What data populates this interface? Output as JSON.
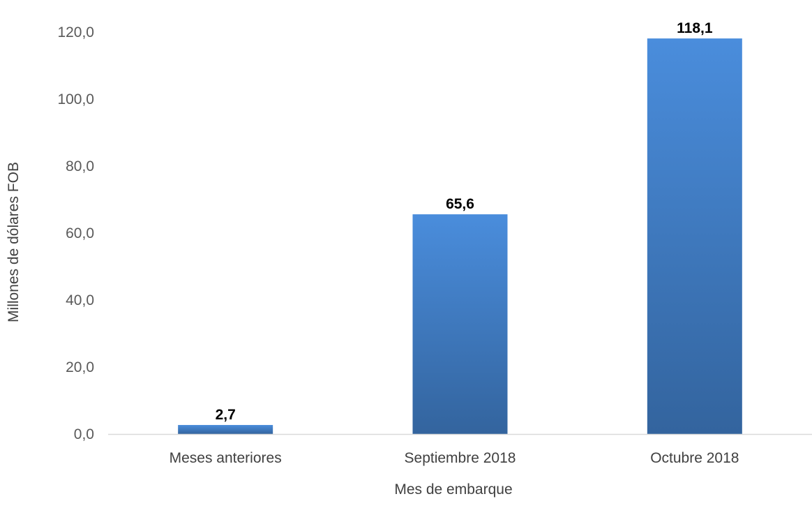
{
  "chart_data": {
    "type": "bar",
    "categories": [
      "Meses anteriores",
      "Septiembre 2018",
      "Octubre 2018"
    ],
    "values": [
      2.7,
      65.6,
      118.1
    ],
    "value_labels": [
      "2,7",
      "65,6",
      "118,1"
    ],
    "xlabel": "Mes de embarque",
    "ylabel": "Millones de dólares FOB",
    "ylim": [
      0,
      120
    ],
    "yticks": [
      0,
      20,
      40,
      60,
      80,
      100,
      120
    ],
    "ytick_labels": [
      "0,0",
      "20,0",
      "40,0",
      "60,0",
      "80,0",
      "100,0",
      "120,0"
    ],
    "grid": false,
    "legend": "none",
    "colors": {
      "bar_top": "#4A8DDC",
      "bar_bottom": "#33649E",
      "axis": "#D9D9D9"
    }
  }
}
